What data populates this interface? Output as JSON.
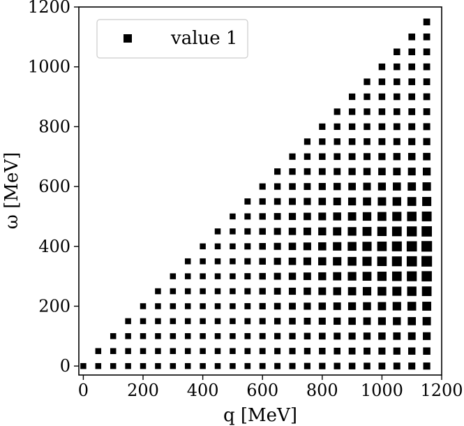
{
  "chart_data": {
    "type": "scatter",
    "title": "",
    "xlabel": "q [MeV]",
    "ylabel": "ω [MeV]",
    "xlim": [
      -15,
      1200
    ],
    "ylim": [
      -30,
      1200
    ],
    "xticks": [
      0,
      200,
      400,
      600,
      800,
      1000,
      1200
    ],
    "yticks": [
      0,
      200,
      400,
      600,
      800,
      1000,
      1200
    ],
    "grid": false,
    "legend": {
      "position": "top-left",
      "entries": [
        "value 1"
      ]
    },
    "marker": "square",
    "marker_color": "#000000",
    "grid_step_MeV": 50,
    "q_range": [
      0,
      1150
    ],
    "omega_rule": "0 <= omega <= q",
    "size_trend": "marker size increases with q; largest at high q and omega between about 200 and 500 MeV",
    "series": [
      {
        "name": "value 1"
      }
    ]
  }
}
